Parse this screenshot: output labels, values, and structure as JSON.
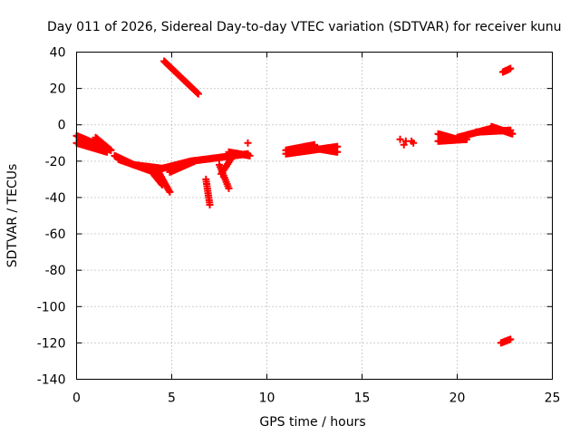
{
  "chart_data": {
    "type": "scatter",
    "title": "Day 011 of 2026, Sidereal Day-to-day VTEC variation (SDTVAR) for receiver kunu",
    "xlabel": "GPS time / hours",
    "ylabel": "SDTVAR / TECUs",
    "xlim": [
      0,
      25
    ],
    "ylim": [
      -140,
      40
    ],
    "xticks": [
      0,
      5,
      10,
      15,
      20,
      25
    ],
    "yticks": [
      -140,
      -120,
      -100,
      -80,
      -60,
      -40,
      -20,
      0,
      20,
      40
    ],
    "grid": true,
    "marker": "+",
    "color": "#ff0000",
    "segments": [
      {
        "name": "s1",
        "start": [
          0.0,
          -6
        ],
        "end": [
          1.8,
          -14
        ],
        "n": 45
      },
      {
        "name": "s2",
        "start": [
          0.0,
          -10
        ],
        "end": [
          1.6,
          -15
        ],
        "n": 35
      },
      {
        "name": "s3",
        "start": [
          1.0,
          -7
        ],
        "end": [
          1.8,
          -14
        ],
        "n": 18
      },
      {
        "name": "s4",
        "start": [
          2.0,
          -17
        ],
        "end": [
          3.0,
          -22
        ],
        "n": 25
      },
      {
        "name": "s5",
        "start": [
          3.0,
          -22
        ],
        "end": [
          4.5,
          -24
        ],
        "n": 30
      },
      {
        "name": "s6",
        "start": [
          2.2,
          -19
        ],
        "end": [
          3.8,
          -25
        ],
        "n": 30
      },
      {
        "name": "s7",
        "start": [
          3.8,
          -24
        ],
        "end": [
          4.5,
          -33
        ],
        "n": 15
      },
      {
        "name": "s8",
        "start": [
          4.2,
          -24
        ],
        "end": [
          4.9,
          -37
        ],
        "n": 15
      },
      {
        "name": "s9",
        "start": [
          4.5,
          -24
        ],
        "end": [
          6.0,
          -20
        ],
        "n": 30
      },
      {
        "name": "s10",
        "start": [
          4.9,
          -26
        ],
        "end": [
          6.2,
          -20
        ],
        "n": 25
      },
      {
        "name": "s11",
        "start": [
          6.0,
          -20
        ],
        "end": [
          7.5,
          -18
        ],
        "n": 30
      },
      {
        "name": "s12",
        "start": [
          6.8,
          -30
        ],
        "end": [
          7.0,
          -44
        ],
        "n": 12
      },
      {
        "name": "s13",
        "start": [
          7.5,
          -22
        ],
        "end": [
          8.0,
          -35
        ],
        "n": 12
      },
      {
        "name": "s14",
        "start": [
          7.6,
          -27
        ],
        "end": [
          8.1,
          -19
        ],
        "n": 10
      },
      {
        "name": "s15",
        "start": [
          7.5,
          -18
        ],
        "end": [
          9.0,
          -16
        ],
        "n": 30
      },
      {
        "name": "s16",
        "start": [
          8.0,
          -15
        ],
        "end": [
          9.1,
          -17
        ],
        "n": 20
      },
      {
        "name": "s17",
        "start": [
          4.6,
          35
        ],
        "end": [
          6.4,
          17
        ],
        "n": 40
      },
      {
        "name": "s18",
        "start": [
          11.0,
          -14
        ],
        "end": [
          12.5,
          -11
        ],
        "n": 35
      },
      {
        "name": "s19",
        "start": [
          11.0,
          -16
        ],
        "end": [
          13.7,
          -12
        ],
        "n": 55
      },
      {
        "name": "s20",
        "start": [
          12.0,
          -12
        ],
        "end": [
          13.7,
          -15
        ],
        "n": 35
      },
      {
        "name": "s21",
        "start": [
          19.0,
          -5
        ],
        "end": [
          20.0,
          -8
        ],
        "n": 25
      },
      {
        "name": "s22",
        "start": [
          19.0,
          -9
        ],
        "end": [
          20.5,
          -8
        ],
        "n": 30
      },
      {
        "name": "s23",
        "start": [
          20.0,
          -7
        ],
        "end": [
          21.8,
          -2
        ],
        "n": 40
      },
      {
        "name": "s24",
        "start": [
          21.0,
          -4
        ],
        "end": [
          22.8,
          -3
        ],
        "n": 35
      },
      {
        "name": "s25",
        "start": [
          21.8,
          -1
        ],
        "end": [
          22.9,
          -5
        ],
        "n": 25
      },
      {
        "name": "s26",
        "start": [
          22.4,
          29
        ],
        "end": [
          22.8,
          31
        ],
        "n": 8
      },
      {
        "name": "s27",
        "start": [
          22.3,
          -120
        ],
        "end": [
          22.8,
          -118
        ],
        "n": 8
      }
    ],
    "points": [
      {
        "x": 9.0,
        "y": -10
      },
      {
        "x": 17.0,
        "y": -8
      },
      {
        "x": 17.2,
        "y": -11
      },
      {
        "x": 17.6,
        "y": -9
      },
      {
        "x": 17.7,
        "y": -10
      },
      {
        "x": 17.3,
        "y": -9
      }
    ]
  }
}
